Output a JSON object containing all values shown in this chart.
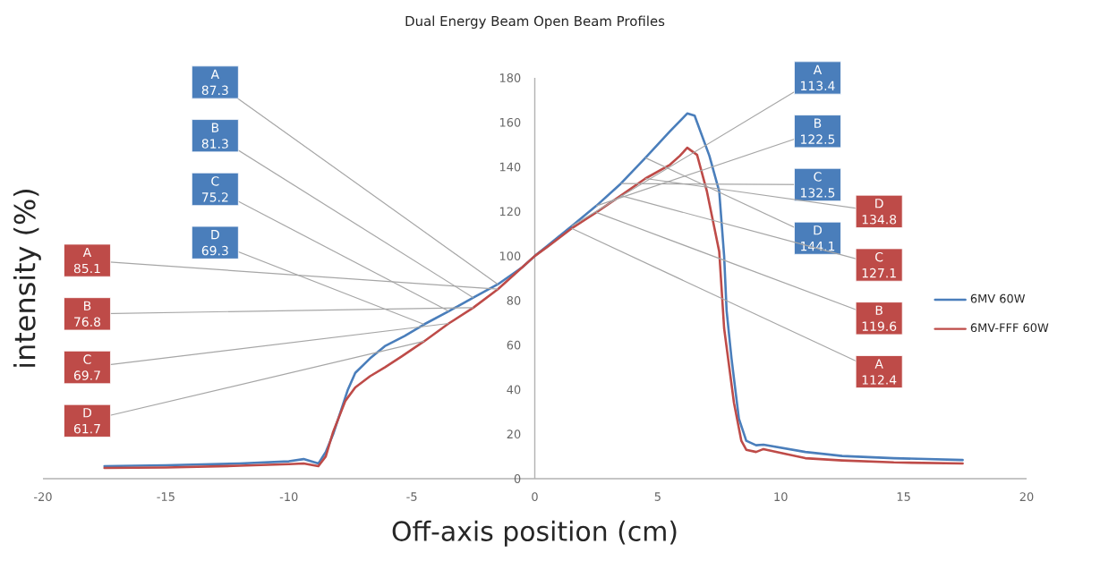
{
  "chart_data": {
    "type": "line",
    "title": "Dual Energy Beam Open Beam Profiles",
    "xlabel": "Off-axis position (cm)",
    "ylabel": "intensity (%)",
    "xlim": [
      -20,
      20
    ],
    "xticks": [
      -20,
      -15,
      -10,
      -5,
      0,
      5,
      10,
      15,
      20
    ],
    "ylim": [
      0,
      180
    ],
    "yticks": [
      0,
      20,
      40,
      60,
      80,
      100,
      120,
      140,
      160,
      180
    ],
    "grid": false,
    "legend": "right",
    "marker": "none",
    "line_style": "solid",
    "series": [
      {
        "name": "6MV 60W",
        "color": "#4a7ebb",
        "x": [
          -17.5,
          -15,
          -12,
          -10,
          -9.4,
          -8.8,
          -8.5,
          -8.2,
          -7.9,
          -7.6,
          -7.3,
          -6.7,
          -6.1,
          -5.3,
          -4.5,
          -3.5,
          -2.5,
          -1.5,
          -0.5,
          0,
          0.5,
          1.5,
          2.5,
          3.5,
          4.5,
          5.5,
          6.2,
          6.5,
          7.1,
          7.5,
          7.7,
          7.8,
          8.0,
          8.3,
          8.6,
          9,
          9.3,
          11,
          12.5,
          14.6,
          17.4
        ],
        "values": [
          5.6,
          6,
          6.8,
          7.8,
          8.8,
          6.8,
          12,
          20,
          30,
          40,
          47.5,
          54,
          59.5,
          64,
          69.3,
          75.2,
          81.3,
          87.3,
          95,
          100,
          104.5,
          113.4,
          122.5,
          132.5,
          144.1,
          156,
          164,
          163,
          145,
          129,
          100,
          75.5,
          54,
          27,
          17,
          15,
          15.3,
          12,
          10.2,
          9.2,
          8.4
        ]
      },
      {
        "name": "6MV-FFF 60W",
        "color": "#be4b48",
        "x": [
          -17.5,
          -15,
          -12,
          -10,
          -9.4,
          -8.8,
          -8.5,
          -8.2,
          -7.7,
          -7.3,
          -6.7,
          -6.1,
          -5.4,
          -4.5,
          -3.5,
          -2.5,
          -1.5,
          -0.5,
          0,
          0.5,
          1.5,
          2.5,
          3.5,
          4.5,
          5.5,
          5.9,
          6.2,
          6.6,
          7.0,
          7.5,
          7.7,
          8.1,
          8.4,
          8.6,
          9,
          9.3,
          11,
          12.5,
          14.6,
          17.4
        ],
        "values": [
          4.8,
          5,
          5.8,
          6.5,
          6.8,
          5.6,
          10,
          21,
          35,
          41,
          46,
          50,
          55,
          61.7,
          69.7,
          76.8,
          85.1,
          95,
          100,
          104,
          112.4,
          119.6,
          127.1,
          134.8,
          141,
          145,
          148.6,
          145.4,
          129,
          102,
          67.5,
          34,
          17,
          13,
          12,
          13.3,
          9.2,
          8.2,
          7.3,
          6.8
        ]
      }
    ],
    "annotations": [
      {
        "text": "A 87.3",
        "x": -1.5,
        "y": 87.3
      },
      {
        "text": "B 81.3",
        "x": -2.5,
        "y": 81.3
      },
      {
        "text": "C 75.2",
        "x": -3.5,
        "y": 75.2
      },
      {
        "text": "D 69.3",
        "x": -4.5,
        "y": 69.3
      },
      {
        "text": "A 85.1",
        "x": -1.5,
        "y": 85.1
      },
      {
        "text": "B 76.8",
        "x": -2.5,
        "y": 76.8
      },
      {
        "text": "C 69.7",
        "x": -3.5,
        "y": 69.7
      },
      {
        "text": "D 61.7",
        "x": -4.5,
        "y": 61.7
      },
      {
        "text": "A 113.4",
        "x": 1.5,
        "y": 113.4
      },
      {
        "text": "B 122.5",
        "x": 2.5,
        "y": 122.5
      },
      {
        "text": "C 132.5",
        "x": 3.5,
        "y": 132.5
      },
      {
        "text": "D 144.1",
        "x": 4.5,
        "y": 144.1
      },
      {
        "text": "D 134.8",
        "x": 4.5,
        "y": 134.8
      },
      {
        "text": "C 127.1",
        "x": 3.5,
        "y": 127.1
      },
      {
        "text": "B 119.6",
        "x": 2.5,
        "y": 119.6
      },
      {
        "text": "A 112.4",
        "x": 1.5,
        "y": 112.4
      }
    ]
  }
}
